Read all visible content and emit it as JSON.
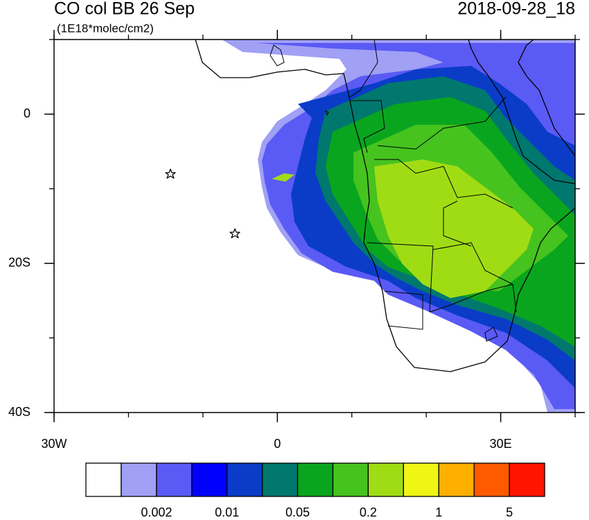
{
  "header": {
    "title": "CO col BB 26 Sep",
    "units": "(1E18*molec/cm2)",
    "date": "2018-09-28_18"
  },
  "axes": {
    "lat_range": [
      -40,
      10
    ],
    "lon_range": [
      -30,
      40
    ],
    "lat_ticks": [
      0,
      {
        "value": -20,
        "label": "20S"
      },
      {
        "value": -40,
        "label": "40S"
      }
    ],
    "lon_ticks": [
      {
        "value": -30,
        "label": "30W"
      },
      0,
      {
        "value": 30,
        "label": "30E"
      }
    ]
  },
  "colorbar": {
    "colors": [
      "#ffffff",
      "#a0a0f5",
      "#5a5af5",
      "#0000ff",
      "#0a3cc8",
      "#00786e",
      "#0aa51e",
      "#46c31e",
      "#a0dc14",
      "#f0f514",
      "#ffaf00",
      "#ff5a00",
      "#ff1400"
    ],
    "labels": [
      0.002,
      0.01,
      0.05,
      0.2,
      1,
      5
    ]
  }
}
